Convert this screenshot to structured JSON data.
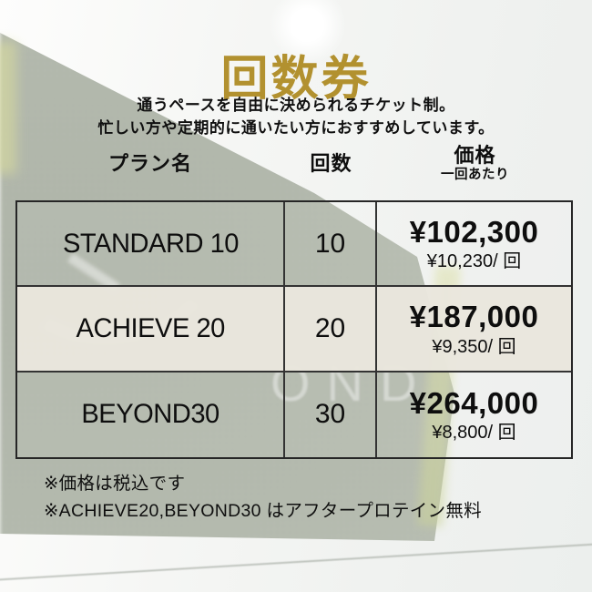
{
  "title": "回数券",
  "subtitle": {
    "line1": "通うペースを自由に決められるチケット制。",
    "line2": "忙しい方や定期的に通いたい方におすすめしています。"
  },
  "table": {
    "headers": {
      "plan": "プラン名",
      "count": "回数",
      "price": "価格",
      "price_sub": "一回あたり"
    },
    "rows": [
      {
        "plan": "STANDARD 10",
        "count": "10",
        "price": "¥102,300",
        "per_session": "¥10,230/ 回"
      },
      {
        "plan": "ACHIEVE 20",
        "count": "20",
        "price": "¥187,000",
        "per_session": "¥9,350/ 回"
      },
      {
        "plan": "BEYOND30",
        "count": "30",
        "price": "¥264,000",
        "per_session": "¥8,800/ 回"
      }
    ]
  },
  "notes": {
    "line1": "※価格は税込です",
    "line2": "※ACHIEVE20,BEYOND30 はアフタープロテイン無料"
  },
  "background": {
    "watermark": "OND"
  },
  "colors": {
    "title_gold": "#b2912f",
    "border_dark": "#262626",
    "row_beige": "rgba(233,230,221,0.97)",
    "wall_green": "#b3b9ad"
  }
}
